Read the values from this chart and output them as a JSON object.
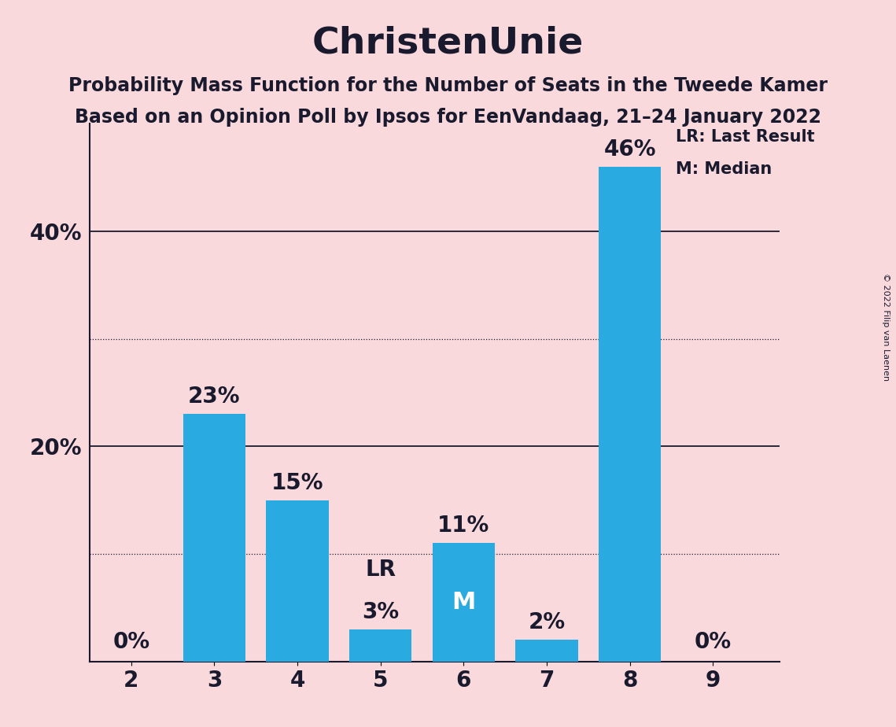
{
  "title": "ChristenUnie",
  "subtitle1": "Probability Mass Function for the Number of Seats in the Tweede Kamer",
  "subtitle2": "Based on an Opinion Poll by Ipsos for EenVandaag, 21–24 January 2022",
  "copyright": "© 2022 Filip van Laenen",
  "categories": [
    2,
    3,
    4,
    5,
    6,
    7,
    8,
    9
  ],
  "values": [
    0,
    23,
    15,
    3,
    11,
    2,
    46,
    0
  ],
  "bar_color": "#29ABE2",
  "background_color": "#F9D9DC",
  "label_color": "#1a1a2e",
  "median_bar": 6,
  "last_result_bar": 5,
  "ylim": [
    0,
    50
  ],
  "solid_yticks": [
    20,
    40
  ],
  "dotted_yticks": [
    10,
    30
  ],
  "bar_labels": [
    "0%",
    "23%",
    "15%",
    "3%",
    "11%",
    "2%",
    "46%",
    "0%"
  ],
  "title_fontsize": 34,
  "subtitle_fontsize": 17,
  "tick_fontsize": 20,
  "bar_label_fontsize": 20
}
